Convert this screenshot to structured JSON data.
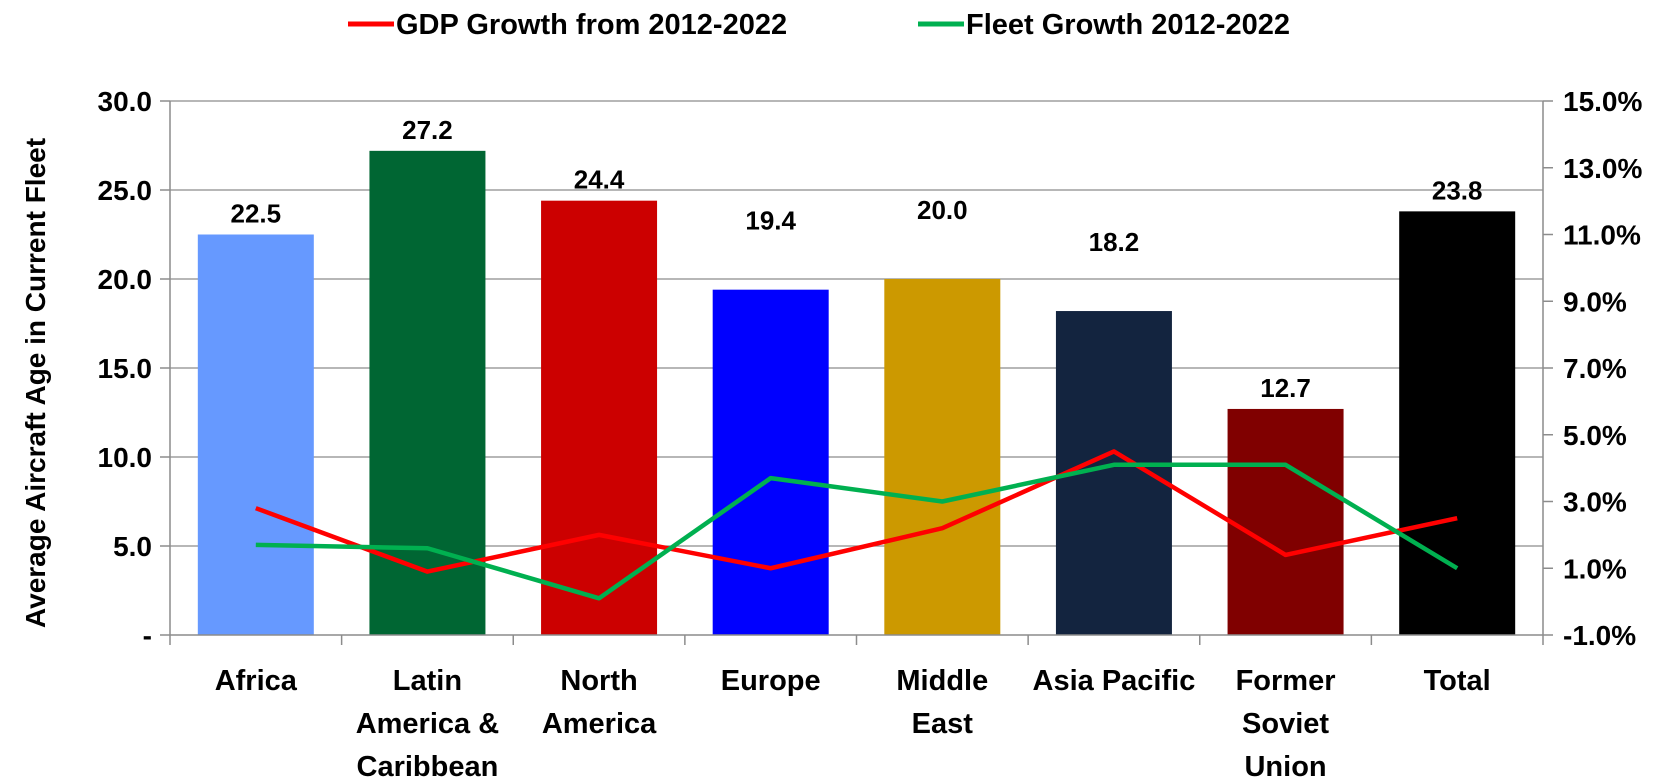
{
  "chart_data": {
    "type": "bar",
    "title": "",
    "ylabel": "Average Aircraft Age in Current Fleet",
    "ylim": [
      0,
      30
    ],
    "y_ticks": [
      "-",
      "5.0",
      "10.0",
      "15.0",
      "20.0",
      "25.0",
      "30.0"
    ],
    "y2lim": [
      -1,
      15
    ],
    "y2_ticks": [
      "-1.0%",
      "1.0%",
      "3.0%",
      "5.0%",
      "7.0%",
      "9.0%",
      "11.0%",
      "13.0%",
      "15.0%"
    ],
    "categories": [
      [
        "Africa"
      ],
      [
        "Latin",
        "America &",
        "Caribbean"
      ],
      [
        "North",
        "America"
      ],
      [
        "Europe"
      ],
      [
        "Middle",
        "East"
      ],
      [
        "Asia Pacific"
      ],
      [
        "Former",
        "Soviet",
        "Union"
      ],
      [
        "Total"
      ]
    ],
    "bars": {
      "values": [
        22.5,
        27.2,
        24.4,
        19.4,
        20.0,
        18.2,
        12.7,
        23.8
      ],
      "labels": [
        "22.5",
        "27.2",
        "24.4",
        "19.4",
        "20.0",
        "18.2",
        "12.7",
        "23.8"
      ],
      "colors": [
        "#6699ff",
        "#006633",
        "#cc0000",
        "#0000ff",
        "#cc9900",
        "#13243f",
        "#800000",
        "#000000"
      ]
    },
    "series": [
      {
        "name": "GDP Growth from 2012-2022",
        "color": "#ff0000",
        "values": [
          2.8,
          0.9,
          2.0,
          1.0,
          2.2,
          4.5,
          1.4,
          2.5
        ]
      },
      {
        "name": "Fleet Growth 2012-2022",
        "color": "#00b050",
        "values": [
          1.7,
          1.6,
          0.1,
          3.7,
          3.0,
          4.1,
          4.1,
          1.0
        ]
      }
    ],
    "grid": true,
    "legend_position": "top"
  }
}
